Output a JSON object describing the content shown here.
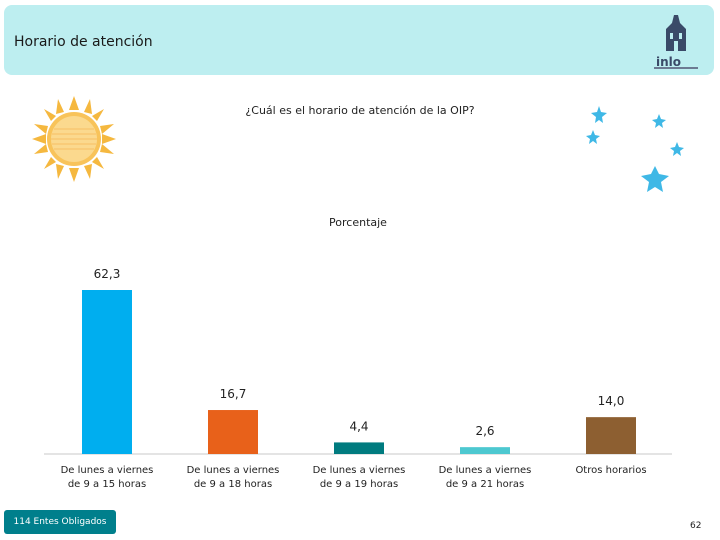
{
  "header": {
    "title": "Horario de atención",
    "logo_text": "inlo"
  },
  "question": "¿Cuál es el horario de atención de la OIP?",
  "chart_data": {
    "type": "bar",
    "title": "Porcentaje",
    "categories": [
      [
        "De lunes a viernes",
        "de 9 a 15 horas"
      ],
      [
        "De lunes a viernes",
        "de 9 a 18 horas"
      ],
      [
        "De lunes a viernes",
        "de 9 a 19 horas"
      ],
      [
        "De lunes a viernes",
        "de 9 a 21 horas"
      ],
      [
        "Otros horarios"
      ]
    ],
    "values": [
      62.3,
      16.7,
      4.4,
      2.6,
      14.0
    ],
    "labels": [
      "62,3",
      "16,7",
      "4,4",
      "2,6",
      "14,0"
    ],
    "colors": [
      "#00aeef",
      "#e8611a",
      "#007b7f",
      "#4dc8d0",
      "#8d5f31"
    ],
    "ylim": [
      0,
      62.3
    ],
    "grid": false,
    "legend": "none"
  },
  "footer": {
    "badge": "114 Entes Obligados",
    "page_number": "62"
  }
}
